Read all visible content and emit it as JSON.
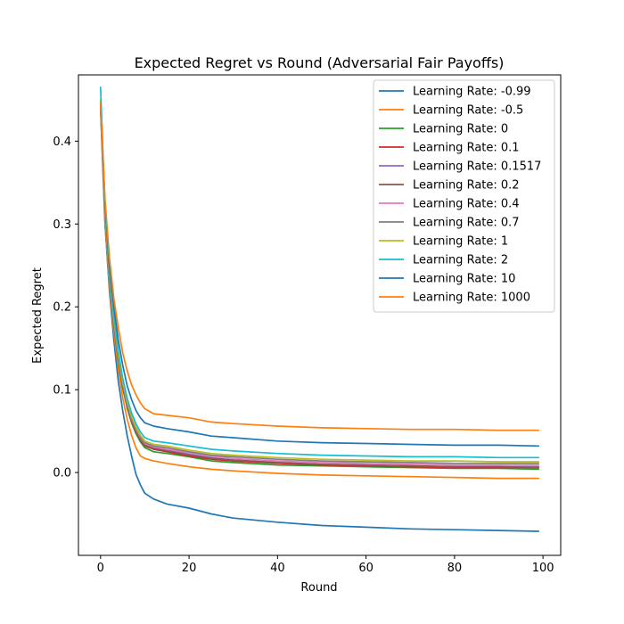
{
  "chart_data": {
    "type": "line",
    "title": "Expected Regret vs Round (Adversarial Fair Payoffs)",
    "xlabel": "Round",
    "ylabel": "Expected Regret",
    "xlim": [
      -5,
      104
    ],
    "ylim": [
      -0.1,
      0.48
    ],
    "xticks": [
      0,
      20,
      40,
      60,
      80,
      100
    ],
    "yticks": [
      0.0,
      0.1,
      0.2,
      0.3,
      0.4
    ],
    "ytick_labels": [
      "0.0",
      "0.1",
      "0.2",
      "0.3",
      "0.4"
    ],
    "grid": false,
    "legend_position": "top-right",
    "x": [
      0,
      1,
      2,
      3,
      4,
      5,
      6,
      7,
      8,
      9,
      10,
      12,
      15,
      20,
      25,
      30,
      40,
      50,
      60,
      70,
      80,
      90,
      99
    ],
    "series": [
      {
        "name": "Learning Rate: -0.99",
        "color": "#1f77b4",
        "values": [
          0.44,
          0.3,
          0.22,
          0.16,
          0.11,
          0.075,
          0.045,
          0.02,
          -0.002,
          -0.015,
          -0.025,
          -0.032,
          -0.038,
          -0.043,
          -0.05,
          -0.055,
          -0.06,
          -0.064,
          -0.066,
          -0.068,
          -0.069,
          -0.07,
          -0.071
        ]
      },
      {
        "name": "Learning Rate: -0.5",
        "color": "#ff7f0e",
        "values": [
          0.44,
          0.3,
          0.225,
          0.17,
          0.125,
          0.09,
          0.065,
          0.045,
          0.03,
          0.02,
          0.017,
          0.014,
          0.011,
          0.007,
          0.004,
          0.002,
          -0.001,
          -0.003,
          -0.004,
          -0.005,
          -0.006,
          -0.007,
          -0.007
        ]
      },
      {
        "name": "Learning Rate: 0",
        "color": "#2ca02c",
        "values": [
          0.445,
          0.31,
          0.232,
          0.178,
          0.135,
          0.102,
          0.078,
          0.06,
          0.047,
          0.037,
          0.03,
          0.025,
          0.023,
          0.019,
          0.014,
          0.012,
          0.009,
          0.008,
          0.007,
          0.006,
          0.005,
          0.005,
          0.004
        ]
      },
      {
        "name": "Learning Rate: 0.1",
        "color": "#d62728",
        "values": [
          0.445,
          0.31,
          0.233,
          0.18,
          0.137,
          0.104,
          0.08,
          0.062,
          0.049,
          0.039,
          0.032,
          0.028,
          0.025,
          0.02,
          0.016,
          0.014,
          0.011,
          0.009,
          0.008,
          0.007,
          0.006,
          0.006,
          0.006
        ]
      },
      {
        "name": "Learning Rate: 0.1517",
        "color": "#9467bd",
        "values": [
          0.445,
          0.31,
          0.234,
          0.181,
          0.138,
          0.105,
          0.081,
          0.063,
          0.05,
          0.04,
          0.033,
          0.029,
          0.027,
          0.022,
          0.018,
          0.015,
          0.012,
          0.01,
          0.009,
          0.008,
          0.007,
          0.007,
          0.007
        ]
      },
      {
        "name": "Learning Rate: 0.2",
        "color": "#8c564b",
        "values": [
          0.445,
          0.31,
          0.234,
          0.181,
          0.138,
          0.105,
          0.081,
          0.063,
          0.05,
          0.04,
          0.033,
          0.029,
          0.026,
          0.021,
          0.017,
          0.015,
          0.012,
          0.01,
          0.009,
          0.008,
          0.007,
          0.007,
          0.006
        ]
      },
      {
        "name": "Learning Rate: 0.4",
        "color": "#e377c2",
        "values": [
          0.447,
          0.312,
          0.236,
          0.183,
          0.14,
          0.107,
          0.083,
          0.065,
          0.052,
          0.042,
          0.035,
          0.031,
          0.028,
          0.024,
          0.02,
          0.017,
          0.014,
          0.012,
          0.011,
          0.01,
          0.009,
          0.009,
          0.009
        ]
      },
      {
        "name": "Learning Rate: 0.7",
        "color": "#7f7f7f",
        "values": [
          0.447,
          0.312,
          0.236,
          0.184,
          0.141,
          0.108,
          0.084,
          0.066,
          0.053,
          0.043,
          0.036,
          0.032,
          0.03,
          0.025,
          0.021,
          0.019,
          0.016,
          0.014,
          0.013,
          0.012,
          0.011,
          0.011,
          0.011
        ]
      },
      {
        "name": "Learning Rate: 1",
        "color": "#bcbd22",
        "values": [
          0.45,
          0.315,
          0.238,
          0.186,
          0.143,
          0.11,
          0.086,
          0.068,
          0.055,
          0.045,
          0.038,
          0.034,
          0.032,
          0.027,
          0.023,
          0.021,
          0.018,
          0.016,
          0.015,
          0.014,
          0.014,
          0.013,
          0.013
        ]
      },
      {
        "name": "Learning Rate: 2",
        "color": "#17becf",
        "values": [
          0.465,
          0.32,
          0.24,
          0.19,
          0.147,
          0.114,
          0.09,
          0.072,
          0.059,
          0.049,
          0.042,
          0.038,
          0.036,
          0.032,
          0.028,
          0.026,
          0.023,
          0.021,
          0.02,
          0.019,
          0.019,
          0.018,
          0.018
        ]
      },
      {
        "name": "Learning Rate: 10",
        "color": "#1f77b4",
        "values": [
          0.445,
          0.325,
          0.25,
          0.2,
          0.16,
          0.13,
          0.105,
          0.088,
          0.075,
          0.066,
          0.06,
          0.056,
          0.053,
          0.049,
          0.044,
          0.042,
          0.038,
          0.036,
          0.035,
          0.034,
          0.033,
          0.033,
          0.032
        ]
      },
      {
        "name": "Learning Rate: 1000",
        "color": "#ff7f0e",
        "values": [
          0.445,
          0.33,
          0.26,
          0.21,
          0.175,
          0.145,
          0.123,
          0.106,
          0.094,
          0.084,
          0.077,
          0.071,
          0.069,
          0.066,
          0.061,
          0.059,
          0.056,
          0.054,
          0.053,
          0.052,
          0.052,
          0.051,
          0.051
        ]
      }
    ]
  }
}
